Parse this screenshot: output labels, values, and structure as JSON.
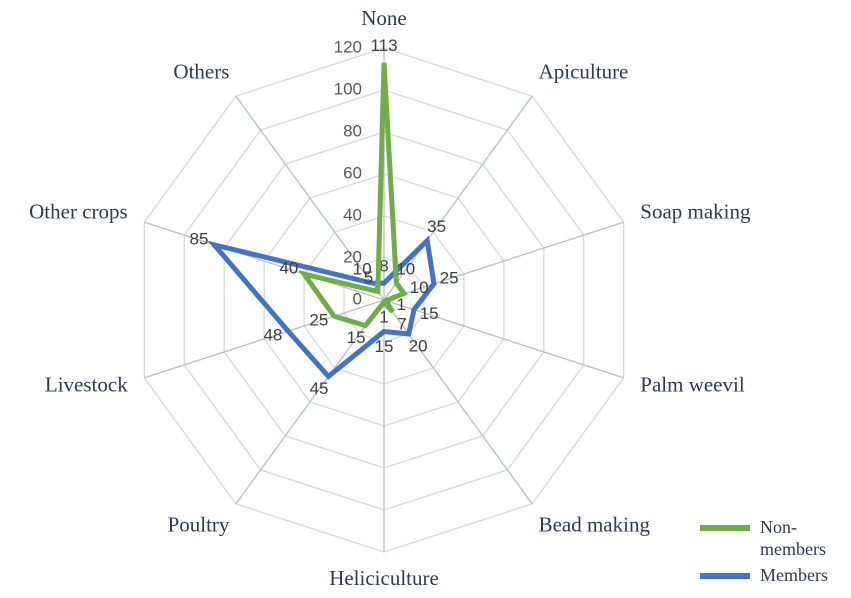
{
  "chart_data": {
    "type": "radar",
    "categories": [
      "None",
      "Apiculture",
      "Soap making",
      "Palm weevil",
      "Bead making",
      "Heliciculture",
      "Poultry",
      "Livestock",
      "Other crops",
      "Others"
    ],
    "series": [
      {
        "name": "Non-members",
        "color": "#70ad47",
        "values": [
          113,
          10,
          10,
          1,
          7,
          1,
          15,
          25,
          40,
          5
        ]
      },
      {
        "name": "Members",
        "color": "#4472c4",
        "values": [
          8,
          35,
          25,
          15,
          20,
          15,
          45,
          48,
          85,
          10
        ]
      }
    ],
    "ylim": [
      0,
      120
    ],
    "yticks": [
      0,
      20,
      40,
      60,
      80,
      100,
      120
    ],
    "grid": true,
    "legend": "bottom-right"
  }
}
